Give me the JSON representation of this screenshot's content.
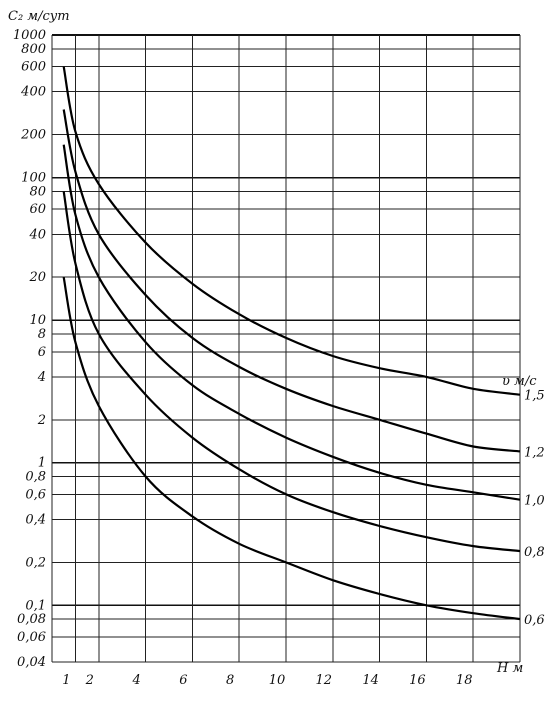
{
  "chart_data": {
    "type": "line",
    "title": "",
    "ylabel": "C₂ м/сут",
    "xlabel": "H м",
    "legend_title": "υ м/с",
    "y_scale": "log",
    "ylim": [
      0.04,
      1000
    ],
    "xlim": [
      0,
      20
    ],
    "grid": true,
    "y_ticks": [
      0.04,
      0.06,
      0.08,
      0.1,
      0.2,
      0.4,
      0.6,
      0.8,
      1,
      2,
      4,
      6,
      8,
      10,
      20,
      40,
      60,
      80,
      100,
      200,
      400,
      600,
      800,
      1000
    ],
    "y_tick_labels": [
      "0,04",
      "0,06",
      "0,08",
      "0,1",
      "0,2",
      "0,4",
      "0,6",
      "0,8",
      "1",
      "2",
      "4",
      "6",
      "8",
      "10",
      "20",
      "40",
      "60",
      "80",
      "100",
      "200",
      "400",
      "600",
      "800",
      "1000"
    ],
    "x_grid": [
      1,
      2,
      4,
      6,
      8,
      10,
      12,
      14,
      16,
      18,
      20
    ],
    "x_tick_labels": [
      "1",
      "2",
      "4",
      "6",
      "8",
      "10",
      "12",
      "14",
      "16",
      "18"
    ],
    "series": [
      {
        "name": "1,5",
        "x": [
          0.5,
          1,
          2,
          4,
          6,
          8,
          10,
          12,
          14,
          16,
          18,
          20
        ],
        "y": [
          600,
          210,
          90,
          35,
          18,
          11,
          7.5,
          5.6,
          4.6,
          4,
          3.3,
          3
        ]
      },
      {
        "name": "1,2",
        "x": [
          0.5,
          1,
          2,
          4,
          6,
          8,
          10,
          12,
          14,
          16,
          18,
          20
        ],
        "y": [
          300,
          110,
          40,
          15,
          7.5,
          4.7,
          3.3,
          2.5,
          2,
          1.6,
          1.3,
          1.2
        ]
      },
      {
        "name": "1,0",
        "x": [
          0.5,
          1,
          2,
          4,
          6,
          8,
          10,
          12,
          14,
          16,
          18,
          20
        ],
        "y": [
          170,
          55,
          20,
          7,
          3.5,
          2.2,
          1.5,
          1.1,
          0.85,
          0.7,
          0.62,
          0.55
        ]
      },
      {
        "name": "0,8",
        "x": [
          0.5,
          1,
          2,
          4,
          6,
          8,
          10,
          12,
          14,
          16,
          18,
          20
        ],
        "y": [
          80,
          25,
          8,
          3,
          1.5,
          0.9,
          0.6,
          0.45,
          0.36,
          0.3,
          0.26,
          0.24
        ]
      },
      {
        "name": "0,6",
        "x": [
          0.5,
          1,
          2,
          4,
          6,
          8,
          10,
          12,
          14,
          16,
          18,
          20
        ],
        "y": [
          20,
          7,
          2.5,
          0.8,
          0.42,
          0.27,
          0.2,
          0.15,
          0.12,
          0.1,
          0.088,
          0.08
        ]
      }
    ]
  }
}
